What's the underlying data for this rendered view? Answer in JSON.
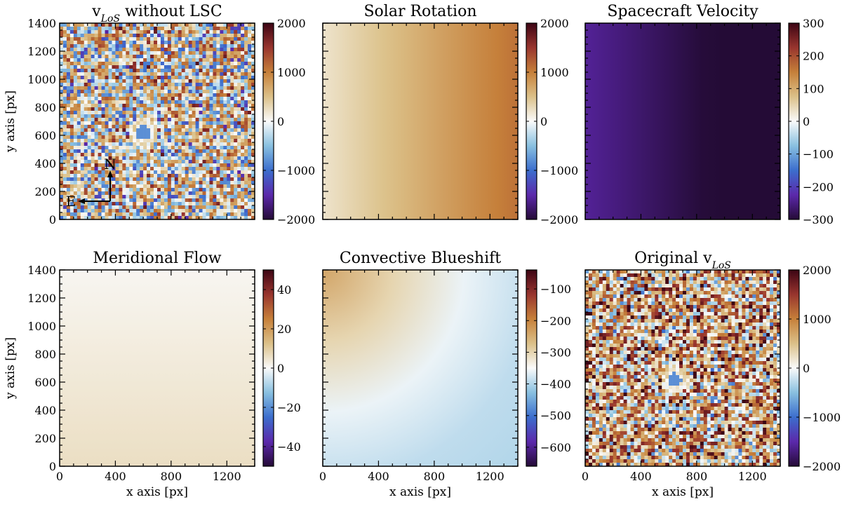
{
  "chart_data": [
    {
      "type": "heatmap",
      "id": "p0",
      "title": "v",
      "title_sub": "LoS",
      "title_rest": " without LSC",
      "xlabel": "",
      "ylabel": "y axis [px]",
      "xlim": [
        0,
        1400
      ],
      "ylim": [
        0,
        1400
      ],
      "xticks": [
        0,
        400,
        800,
        1200
      ],
      "yticks": [
        0,
        200,
        400,
        600,
        800,
        1000,
        1200,
        1400
      ],
      "show_xtick_labels": false,
      "show_ytick_labels": true,
      "colorbar": {
        "min": -2000,
        "max": 2000,
        "ticks": [
          -2000,
          -1000,
          0,
          1000,
          2000
        ],
        "tick_labels": [
          "−2000",
          "−1000",
          "0",
          "1000",
          "2000"
        ]
      },
      "field": "noise_spot",
      "compass": {
        "north": "N",
        "east": "E"
      }
    },
    {
      "type": "heatmap",
      "id": "p1",
      "title": "Solar Rotation",
      "xlabel": "",
      "ylabel": "",
      "xlim": [
        0,
        1400
      ],
      "ylim": [
        0,
        1400
      ],
      "xticks": [
        0,
        400,
        800,
        1200
      ],
      "yticks": [
        0,
        200,
        400,
        600,
        800,
        1000,
        1200,
        1400
      ],
      "show_xtick_labels": false,
      "show_ytick_labels": false,
      "colorbar": {
        "min": -2000,
        "max": 2000,
        "ticks": [
          -2000,
          -1000,
          0,
          1000,
          2000
        ],
        "tick_labels": [
          "−2000",
          "−1000",
          "0",
          "1000",
          "2000"
        ]
      },
      "field": "gradient_x",
      "field_range": [
        200,
        1100
      ]
    },
    {
      "type": "heatmap",
      "id": "p2",
      "title": "Spacecraft Velocity",
      "xlabel": "",
      "ylabel": "",
      "xlim": [
        0,
        1400
      ],
      "ylim": [
        0,
        1400
      ],
      "xticks": [
        0,
        400,
        800,
        1200
      ],
      "yticks": [
        0,
        200,
        400,
        600,
        800,
        1000,
        1200,
        1400
      ],
      "show_xtick_labels": false,
      "show_ytick_labels": false,
      "colorbar": {
        "min": -300,
        "max": 300,
        "ticks": [
          -300,
          -200,
          -100,
          0,
          100,
          200,
          300
        ],
        "tick_labels": [
          "−300",
          "−200",
          "−100",
          "0",
          "100",
          "200",
          "300"
        ]
      },
      "field": "gradient_x_nonlinear",
      "field_range": [
        -240,
        -300
      ]
    },
    {
      "type": "heatmap",
      "id": "p3",
      "title": "Meridional Flow",
      "xlabel": "x axis [px]",
      "ylabel": "y axis [px]",
      "xlim": [
        0,
        1400
      ],
      "ylim": [
        0,
        1400
      ],
      "xticks": [
        0,
        400,
        800,
        1200
      ],
      "yticks": [
        0,
        200,
        400,
        600,
        800,
        1000,
        1200,
        1400
      ],
      "show_xtick_labels": true,
      "show_ytick_labels": true,
      "colorbar": {
        "min": -50,
        "max": 50,
        "ticks": [
          -40,
          -20,
          0,
          20,
          40
        ],
        "tick_labels": [
          "−40",
          "−20",
          "0",
          "20",
          "40"
        ]
      },
      "field": "gradient_y",
      "field_range": [
        6,
        1
      ]
    },
    {
      "type": "heatmap",
      "id": "p4",
      "title": "Convective Blueshift",
      "xlabel": "x axis [px]",
      "ylabel": "",
      "xlim": [
        0,
        1400
      ],
      "ylim": [
        0,
        1400
      ],
      "xticks": [
        0,
        400,
        800,
        1200
      ],
      "yticks": [
        0,
        200,
        400,
        600,
        800,
        1000,
        1200,
        1400
      ],
      "show_xtick_labels": true,
      "show_ytick_labels": false,
      "colorbar": {
        "min": -660,
        "max": -40,
        "ticks": [
          -600,
          -500,
          -400,
          -300,
          -200,
          -100
        ],
        "tick_labels": [
          "−600",
          "−500",
          "−400",
          "−300",
          "−200",
          "−100"
        ]
      },
      "field": "radial_corner",
      "field_range": [
        -290,
        -400
      ]
    },
    {
      "type": "heatmap",
      "id": "p5",
      "title": "Original v",
      "title_sub": "LoS",
      "title_rest": "",
      "xlabel": "x axis [px]",
      "ylabel": "",
      "xlim": [
        0,
        1400
      ],
      "ylim": [
        0,
        1400
      ],
      "xticks": [
        0,
        400,
        800,
        1200
      ],
      "yticks": [
        0,
        200,
        400,
        600,
        800,
        1000,
        1200,
        1400
      ],
      "show_xtick_labels": true,
      "show_ytick_labels": false,
      "colorbar": {
        "min": -2000,
        "max": 2000,
        "ticks": [
          -2000,
          -1000,
          0,
          1000,
          2000
        ],
        "tick_labels": [
          "−2000",
          "−1000",
          "0",
          "1000",
          "2000"
        ]
      },
      "field": "noise_spot_shifted"
    }
  ]
}
